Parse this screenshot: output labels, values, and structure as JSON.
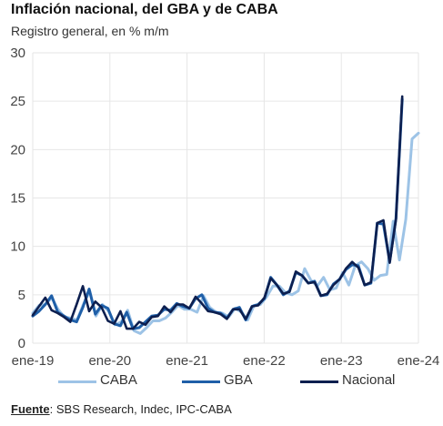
{
  "header": {
    "title": "Inflación nacional, del GBA y de CABA",
    "subtitle": "Registro general, en % m/m"
  },
  "colors": {
    "CABA": "#9dc3e6",
    "GBA": "#1f5fa8",
    "Nacional": "#0d1f4f",
    "grid": "#e6e6e6"
  },
  "footer": {
    "source_label": "Fuente",
    "source_text": ": SBS Research, Indec, IPC-CABA"
  },
  "chart_data": {
    "type": "line",
    "title": "Inflación nacional, del GBA y de CABA",
    "subtitle": "Registro general, en % m/m",
    "ylim": [
      0,
      30
    ],
    "yticks": [
      0,
      5,
      10,
      15,
      20,
      25,
      30
    ],
    "x_start": "ene-19",
    "x_end": "ene-24",
    "xticks": [
      "ene-19",
      "ene-20",
      "ene-21",
      "ene-22",
      "ene-23",
      "ene-24"
    ],
    "grid": true,
    "legend": "bottom",
    "series": [
      {
        "name": "CABA",
        "values": [
          3.1,
          3.9,
          4.0,
          4.7,
          3.5,
          2.7,
          2.6,
          2.4,
          4.0,
          5.4,
          2.8,
          4.0,
          3.3,
          1.9,
          2.2,
          3.4,
          1.3,
          1.0,
          1.6,
          2.3,
          2.3,
          2.6,
          3.2,
          3.9,
          3.5,
          3.5,
          3.2,
          4.9,
          3.7,
          3.2,
          3.1,
          2.7,
          3.6,
          3.2,
          2.4,
          3.9,
          4.0,
          4.8,
          5.9,
          5.9,
          5.2,
          5.0,
          5.4,
          7.7,
          6.5,
          5.9,
          6.8,
          5.5,
          5.7,
          7.3,
          6.0,
          8.0,
          8.4,
          7.7,
          6.5,
          7.0,
          7.1,
          12.6,
          8.6,
          12.8,
          21.1,
          21.7
        ]
      },
      {
        "name": "GBA",
        "values": [
          2.8,
          3.3,
          4.0,
          4.9,
          3.2,
          2.8,
          2.4,
          2.2,
          3.7,
          5.6,
          3.0,
          3.9,
          3.6,
          2.0,
          1.8,
          3.2,
          1.5,
          1.6,
          2.2,
          2.8,
          2.9,
          3.5,
          3.4,
          4.1,
          3.8,
          3.6,
          4.6,
          5.0,
          3.6,
          3.2,
          3.1,
          2.6,
          3.5,
          3.7,
          2.4,
          3.8,
          4.0,
          4.6,
          6.8,
          6.0,
          5.0,
          5.4,
          7.3,
          7.0,
          6.2,
          6.4,
          4.9,
          5.0,
          6.1,
          6.6,
          7.6,
          8.1,
          8.0,
          6.0,
          6.2,
          12.4,
          12.3,
          8.4,
          12.9,
          25.2
        ]
      },
      {
        "name": "Nacional",
        "values": [
          2.9,
          3.8,
          4.7,
          3.4,
          3.1,
          2.7,
          2.2,
          4.0,
          5.9,
          3.3,
          4.3,
          3.7,
          2.3,
          2.0,
          3.3,
          1.5,
          1.5,
          2.2,
          1.9,
          2.7,
          2.8,
          3.8,
          3.2,
          4.0,
          4.0,
          3.6,
          4.8,
          4.1,
          3.3,
          3.2,
          3.0,
          2.5,
          3.5,
          3.5,
          2.5,
          3.8,
          3.9,
          4.7,
          6.7,
          6.0,
          5.1,
          5.3,
          7.4,
          7.0,
          6.2,
          6.3,
          4.9,
          5.1,
          6.0,
          6.6,
          7.7,
          8.4,
          7.8,
          6.0,
          6.3,
          12.4,
          12.7,
          8.3,
          12.8,
          25.5
        ]
      }
    ]
  }
}
